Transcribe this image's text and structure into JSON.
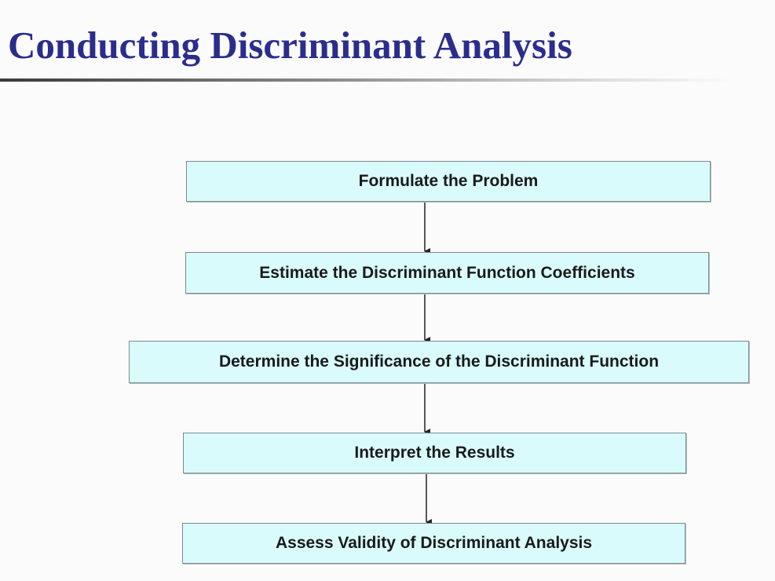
{
  "slide": {
    "title": "Conducting Discriminant Analysis"
  },
  "flowchart": {
    "steps": [
      "Formulate the Problem",
      "Estimate the Discriminant Function Coefficients",
      "Determine the Significance of the Discriminant Function",
      "Interpret the Results",
      "Assess Validity of Discriminant Analysis"
    ]
  },
  "colors": {
    "title": "#2b2d8c",
    "box_fill": "#d9fbfc",
    "box_border": "#7d8a8c",
    "arrow": "#222222"
  }
}
